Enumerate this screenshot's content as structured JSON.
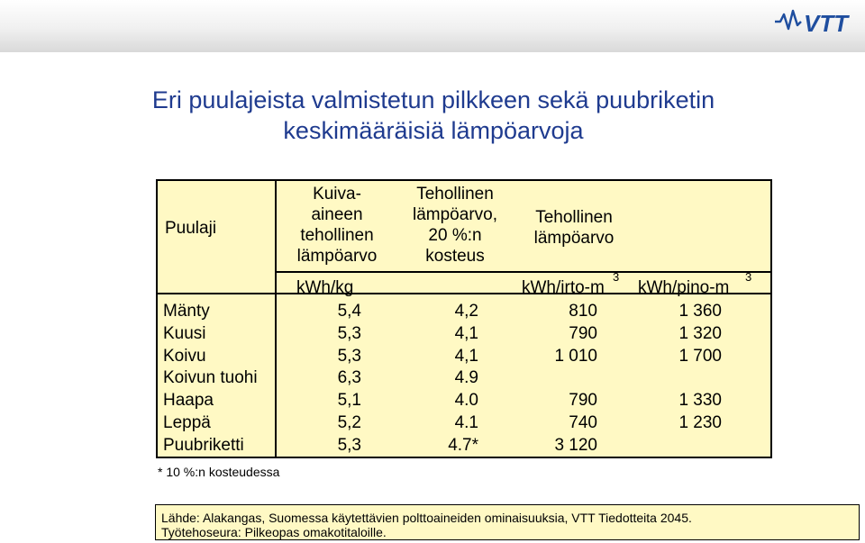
{
  "header": {
    "logo_text": "VTT",
    "logo_color": "#1f4e9f"
  },
  "title": {
    "line1": "Eri puulajeista valmistetun pilkkeen sekä puubriketin",
    "line2": "keskimääräisiä lämpöarvoja"
  },
  "table": {
    "background": "#fff9c4",
    "headers": {
      "col1": "Puulaji",
      "col2_lines": [
        "Kuiva-",
        "aineen",
        "tehollinen",
        "lämpöarvo"
      ],
      "col3_lines": [
        "Tehollinen",
        "lämpöarvo,",
        "20 %:n",
        "kosteus"
      ],
      "col4_lines": [
        "Tehollinen",
        "lämpöarvo"
      ]
    },
    "units": {
      "kwh_kg": "kWh/kg",
      "kwh_irto": "kWh/irto-m",
      "kwh_pino": "kWh/pino-m",
      "sup": "3"
    },
    "rows": [
      {
        "name": "Mänty",
        "dry": "5,4",
        "moist": "4,2",
        "irto": "810",
        "pino": "1 360"
      },
      {
        "name": "Kuusi",
        "dry": "5,3",
        "moist": "4,1",
        "irto": "790",
        "pino": "1 320"
      },
      {
        "name": "Koivu",
        "dry": "5,3",
        "moist": "4,1",
        "irto": "1 010",
        "pino": "1 700"
      },
      {
        "name": "Koivun tuohi",
        "dry": "6,3",
        "moist": "4.9",
        "irto": "",
        "pino": ""
      },
      {
        "name": "Haapa",
        "dry": "5,1",
        "moist": "4.0",
        "irto": "790",
        "pino": "1 330"
      },
      {
        "name": "Leppä",
        "dry": "5,2",
        "moist": "4.1",
        "irto": "740",
        "pino": "1 230"
      },
      {
        "name": "Puubriketti",
        "dry": "5,3",
        "moist": "4.7*",
        "irto": "3 120",
        "pino": ""
      }
    ]
  },
  "footnote": "* 10 %:n kosteudessa",
  "source": {
    "line1": "Lähde: Alakangas, Suomessa käytettävien polttoaineiden ominaisuuksia, VTT Tiedotteita 2045.",
    "line2": "Työtehoseura: Pilkeopas omakotitaloille."
  }
}
